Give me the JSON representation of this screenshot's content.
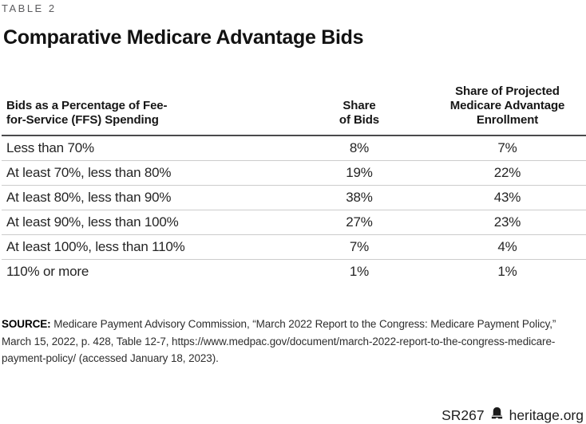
{
  "page": {
    "eyebrow": "TABLE 2",
    "title": "Comparative Medicare Advantage Bids"
  },
  "chart_data": {
    "type": "table",
    "title": "Comparative Medicare Advantage Bids",
    "columns": [
      "Bids as a Percentage of Fee-for-Service (FFS) Spending",
      "Share of Bids",
      "Share of Projected Medicare Advantage Enrollment"
    ],
    "rows": [
      [
        "Less than 70%",
        "8%",
        "7%"
      ],
      [
        "At least 70%, less than 80%",
        "19%",
        "22%"
      ],
      [
        "At least 80%, less than 90%",
        "38%",
        "43%"
      ],
      [
        "At least 90%, less than 100%",
        "27%",
        "23%"
      ],
      [
        "At least 100%, less than 110%",
        "7%",
        "4%"
      ],
      [
        "110% or more",
        "1%",
        "1%"
      ]
    ]
  },
  "table": {
    "headers": [
      "Bids as a Percentage of Fee-\nfor-Service (FFS) Spending",
      "Share\nof Bids",
      "Share of Projected\nMedicare Advantage\nEnrollment"
    ]
  },
  "source": {
    "label": "SOURCE:",
    "text": " Medicare Payment Advisory Commission, “March 2022 Report to the Congress: Medicare Payment Policy,” March 15, 2022, p. 428, Table 12-7, https://www.medpac.gov/document/march-2022-report-to-the-congress-medicare-payment-policy/ (accessed January 18, 2023)."
  },
  "footer": {
    "report_id": "SR267",
    "logo_icon": "heritage-bell-icon",
    "site": "heritage.org"
  },
  "colors": {
    "eyebrow": "#5b5b5e",
    "title_text": "#121212",
    "header_rule": "#4a4a4c",
    "row_divider": "#cccccc",
    "body_text": "#252525"
  }
}
